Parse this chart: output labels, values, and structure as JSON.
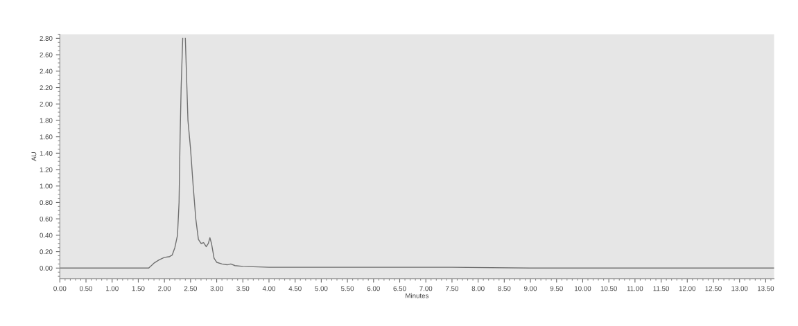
{
  "chart_data": {
    "type": "line",
    "xlabel": "Minutes",
    "ylabel": "AU",
    "x": [
      0.0,
      1.7,
      1.8,
      1.9,
      2.0,
      2.1,
      2.15,
      2.2,
      2.25,
      2.28,
      2.3,
      2.32,
      2.34,
      2.35,
      2.375,
      2.4,
      2.41,
      2.45,
      2.5,
      2.55,
      2.6,
      2.65,
      2.7,
      2.75,
      2.8,
      2.84,
      2.87,
      2.9,
      2.95,
      3.0,
      3.1,
      3.2,
      3.27,
      3.35,
      3.5,
      4.0,
      5.0,
      7.5,
      9.0,
      10.2,
      13.66
    ],
    "series": [
      {
        "color": "#707070",
        "values": [
          0.0,
          0.0,
          0.06,
          0.1,
          0.13,
          0.14,
          0.16,
          0.25,
          0.4,
          0.8,
          1.6,
          2.2,
          2.6,
          2.8,
          null,
          2.8,
          2.6,
          1.8,
          1.45,
          1.0,
          0.6,
          0.35,
          0.3,
          0.31,
          0.26,
          0.3,
          0.37,
          0.3,
          0.12,
          0.07,
          0.05,
          0.04,
          0.05,
          0.03,
          0.02,
          0.01,
          0.01,
          0.01,
          0.0,
          0.0,
          0.0
        ]
      }
    ],
    "xlim": [
      0,
      13.66
    ],
    "ylim": [
      -0.13,
      2.85
    ],
    "xticks": [
      {
        "value": 0,
        "label": "0.00"
      },
      {
        "value": 0.5,
        "label": "0.50"
      },
      {
        "value": 1,
        "label": "1.00"
      },
      {
        "value": 1.5,
        "label": "1.50"
      },
      {
        "value": 2,
        "label": "2.00"
      },
      {
        "value": 2.5,
        "label": "2.50"
      },
      {
        "value": 3,
        "label": "3.00"
      },
      {
        "value": 3.5,
        "label": "3.50"
      },
      {
        "value": 4,
        "label": "4.00"
      },
      {
        "value": 4.5,
        "label": "4.50"
      },
      {
        "value": 5,
        "label": "5.00"
      },
      {
        "value": 5.5,
        "label": "5.50"
      },
      {
        "value": 6,
        "label": "6.00"
      },
      {
        "value": 6.5,
        "label": "6.50"
      },
      {
        "value": 7,
        "label": "7.00"
      },
      {
        "value": 7.5,
        "label": "7.50"
      },
      {
        "value": 8,
        "label": "8.00"
      },
      {
        "value": 8.5,
        "label": "8.50"
      },
      {
        "value": 9,
        "label": "9.00"
      },
      {
        "value": 9.5,
        "label": "9.50"
      },
      {
        "value": 10,
        "label": "10.00"
      },
      {
        "value": 10.5,
        "label": "10.50"
      },
      {
        "value": 11,
        "label": "11.00"
      },
      {
        "value": 11.5,
        "label": "11.50"
      },
      {
        "value": 12,
        "label": "12.00"
      },
      {
        "value": 12.5,
        "label": "12.50"
      },
      {
        "value": 13,
        "label": "13.00"
      },
      {
        "value": 13.5,
        "label": "13.50"
      }
    ],
    "yticks": [
      {
        "value": 0,
        "label": "0.00"
      },
      {
        "value": 0.2,
        "label": "0.20"
      },
      {
        "value": 0.4,
        "label": "0.40"
      },
      {
        "value": 0.6,
        "label": "0.60"
      },
      {
        "value": 0.8,
        "label": "0.80"
      },
      {
        "value": 1,
        "label": "1.00"
      },
      {
        "value": 1.2,
        "label": "1.20"
      },
      {
        "value": 1.4,
        "label": "1.40"
      },
      {
        "value": 1.6,
        "label": "1.60"
      },
      {
        "value": 1.8,
        "label": "1.80"
      },
      {
        "value": 2,
        "label": "2.00"
      },
      {
        "value": 2.2,
        "label": "2.20"
      },
      {
        "value": 2.4,
        "label": "2.40"
      },
      {
        "value": 2.6,
        "label": "2.60"
      },
      {
        "value": 2.8,
        "label": "2.80"
      }
    ],
    "grid": false,
    "marker": "none",
    "line_style": "solid"
  }
}
